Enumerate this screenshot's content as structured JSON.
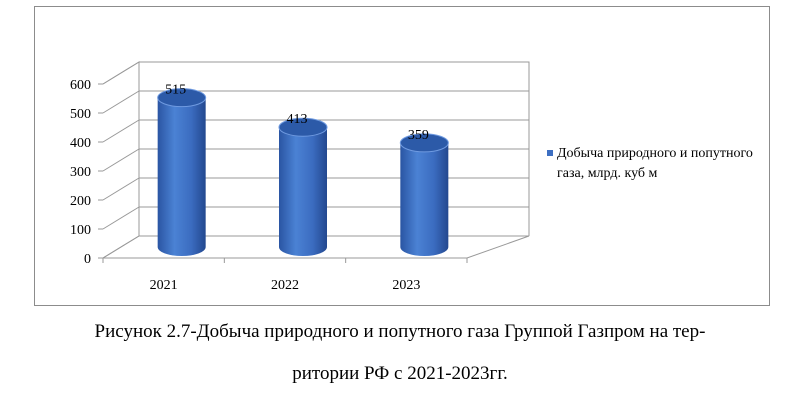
{
  "chart_data": {
    "type": "bar",
    "categories": [
      "2021",
      "2022",
      "2023"
    ],
    "series": [
      {
        "name": "Добыча природного и попутного газа, млрд. куб м",
        "values": [
          515,
          413,
          359
        ]
      }
    ],
    "data_labels": [
      "515",
      "413",
      "359"
    ],
    "y_ticks": [
      "0",
      "100",
      "200",
      "300",
      "400",
      "500",
      "600"
    ],
    "ylim": [
      0,
      600
    ],
    "grid": true,
    "legend_position": "right",
    "bar_color": "#3d6fc2"
  },
  "caption": {
    "line1": "Рисунок 2.7-Добыча природного и попутного газа Группой Газпром на тер-",
    "line2": "ритории РФ с 2021-2023гг."
  }
}
